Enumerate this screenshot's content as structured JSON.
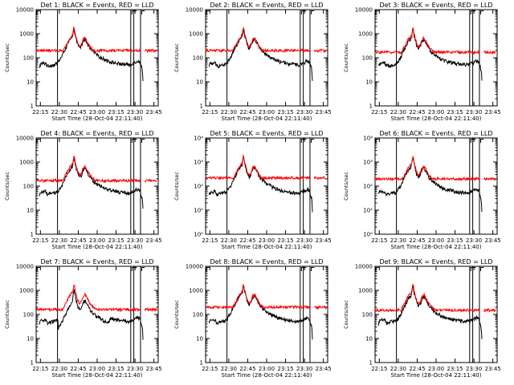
{
  "chart_data": [
    {
      "type": "line",
      "title": "Det 1: BLACK = Events, RED = LLD",
      "ytick_style": "plain"
    },
    {
      "type": "line",
      "title": "Det 2: BLACK = Events, RED = LLD",
      "ytick_style": "plain"
    },
    {
      "type": "line",
      "title": "Det 3: BLACK = Events, RED = LLD",
      "ytick_style": "plain"
    },
    {
      "type": "line",
      "title": "Det 4: BLACK = Events, RED = LLD",
      "ytick_style": "plain"
    },
    {
      "type": "line",
      "title": "Det 5: BLACK = Events, RED = LLD",
      "ytick_style": "power"
    },
    {
      "type": "line",
      "title": "Det 6: BLACK = Events, RED = LLD",
      "ytick_style": "power"
    },
    {
      "type": "line",
      "title": "Det 7: BLACK = Events, RED = LLD",
      "ytick_style": "plain"
    },
    {
      "type": "line",
      "title": "Det 8: BLACK = Events, RED = LLD",
      "ytick_style": "plain"
    },
    {
      "type": "line",
      "title": "Det 9: BLACK = Events, RED = LLD",
      "ytick_style": "plain"
    }
  ],
  "shared": {
    "xlabel": "Start Time (28-Oct-04 22:11:40)",
    "ylabel": "Counts/sec",
    "x_ticks": [
      "22:15",
      "22:30",
      "22:45",
      "23:00",
      "23:15",
      "23:30",
      "23:45"
    ],
    "x_range_min": [
      0,
      100
    ],
    "y_scale": "log",
    "ylim": [
      1,
      10000
    ],
    "yticks_plain": [
      "1",
      "10",
      "100",
      "1000",
      "10000"
    ],
    "yticks_power": [
      "10⁰",
      "10¹",
      "10²",
      "10³",
      "10⁴"
    ],
    "vertical_markers_min": [
      17.5,
      77.5,
      80,
      85.5
    ],
    "series_colors": {
      "events": "#000000",
      "lld": "#ff0000"
    }
  }
}
